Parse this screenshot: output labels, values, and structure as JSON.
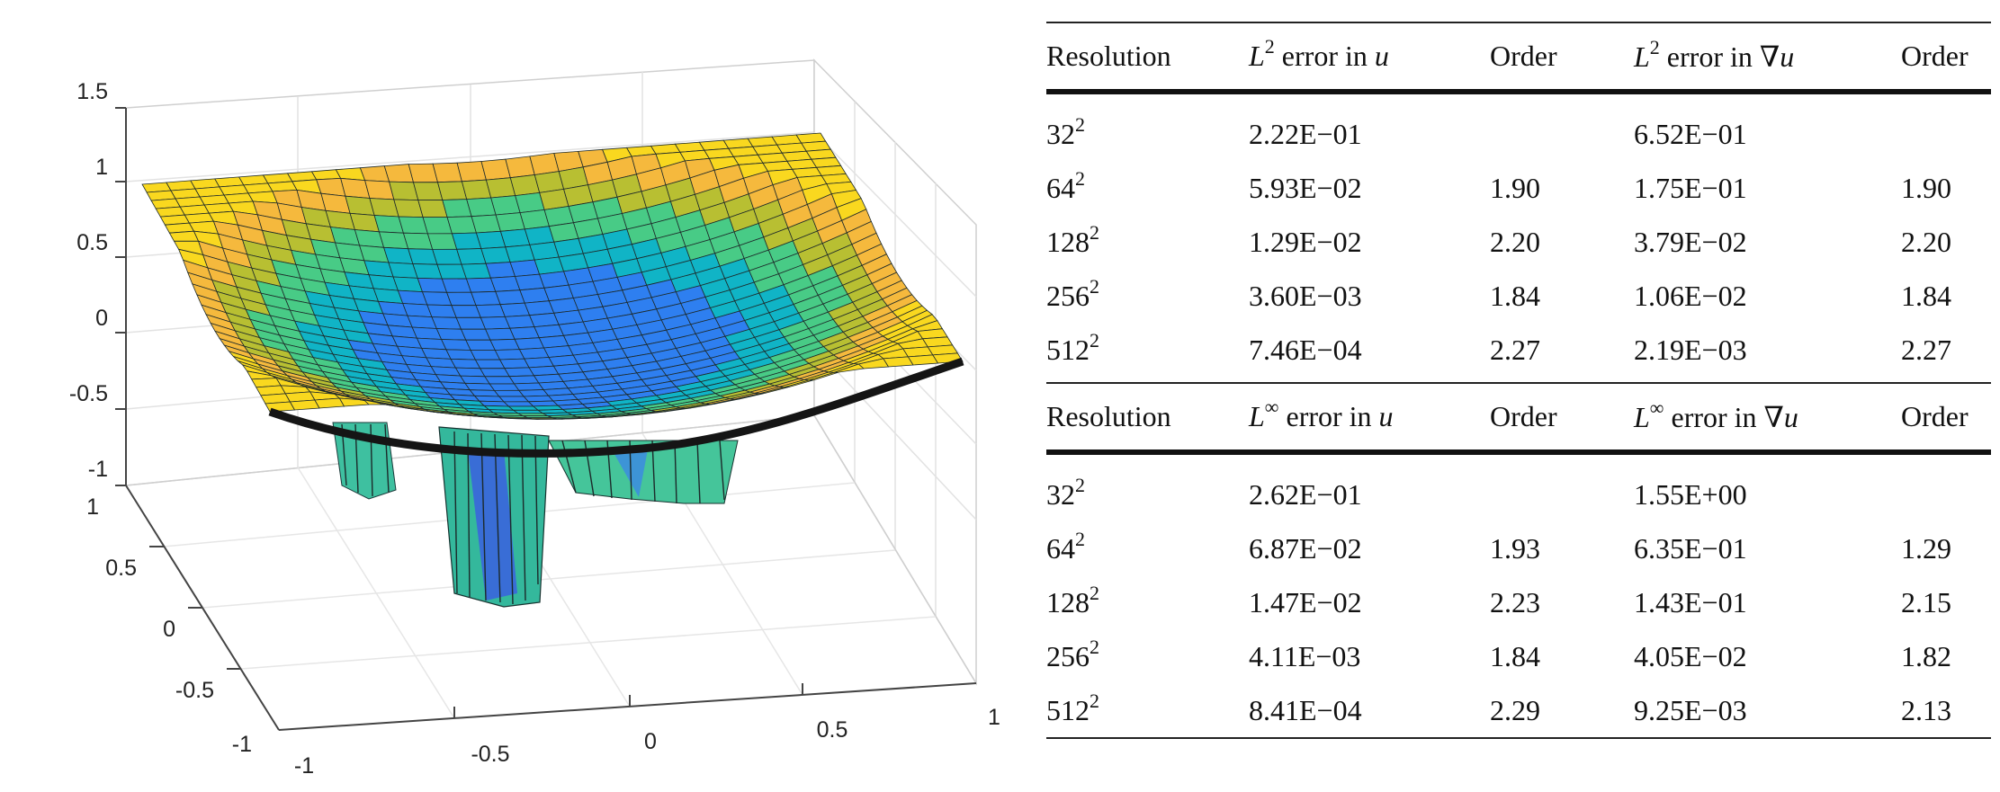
{
  "plot": {
    "z_ticks": [
      "1.5",
      "1",
      "0.5",
      "0",
      "-0.5",
      "-1"
    ],
    "y_ticks": [
      "1",
      "0.5",
      "0",
      "-0.5",
      "-1"
    ],
    "x_ticks": [
      "-1",
      "-0.5",
      "0",
      "0.5",
      "1"
    ],
    "colormap": [
      "#3e26a8",
      "#2e7ff0",
      "#10b4c6",
      "#48cb86",
      "#b8bf32",
      "#f5b93d",
      "#f9d81f"
    ]
  },
  "table_l2": {
    "headers": {
      "resolution": "Resolution",
      "err_u_prefix": "L",
      "err_u_sup": "2",
      "err_u_text": " error in ",
      "err_u_var": "u",
      "order1": "Order",
      "err_grad_prefix": "L",
      "err_grad_sup": "2",
      "err_grad_text": " error in ∇",
      "err_grad_var": "u",
      "order2": "Order"
    },
    "rows": [
      {
        "res_base": "32",
        "res_exp": "2",
        "err_u": "2.22E−01",
        "order_u": "",
        "err_grad": "6.52E−01",
        "order_grad": ""
      },
      {
        "res_base": "64",
        "res_exp": "2",
        "err_u": "5.93E−02",
        "order_u": "1.90",
        "err_grad": "1.75E−01",
        "order_grad": "1.90"
      },
      {
        "res_base": "128",
        "res_exp": "2",
        "err_u": "1.29E−02",
        "order_u": "2.20",
        "err_grad": "3.79E−02",
        "order_grad": "2.20"
      },
      {
        "res_base": "256",
        "res_exp": "2",
        "err_u": "3.60E−03",
        "order_u": "1.84",
        "err_grad": "1.06E−02",
        "order_grad": "1.84"
      },
      {
        "res_base": "512",
        "res_exp": "2",
        "err_u": "7.46E−04",
        "order_u": "2.27",
        "err_grad": "2.19E−03",
        "order_grad": "2.27"
      }
    ]
  },
  "table_linf": {
    "headers": {
      "resolution": "Resolution",
      "err_u_prefix": "L",
      "err_u_sup": "∞",
      "err_u_text": " error in ",
      "err_u_var": "u",
      "order1": "Order",
      "err_grad_prefix": "L",
      "err_grad_sup": "∞",
      "err_grad_text": " error in ∇",
      "err_grad_var": "u",
      "order2": "Order"
    },
    "rows": [
      {
        "res_base": "32",
        "res_exp": "2",
        "err_u": "2.62E−01",
        "order_u": "",
        "err_grad": "1.55E+00",
        "order_grad": ""
      },
      {
        "res_base": "64",
        "res_exp": "2",
        "err_u": "6.87E−02",
        "order_u": "1.93",
        "err_grad": "6.35E−01",
        "order_grad": "1.29"
      },
      {
        "res_base": "128",
        "res_exp": "2",
        "err_u": "1.47E−02",
        "order_u": "2.23",
        "err_grad": "1.43E−01",
        "order_grad": "2.15"
      },
      {
        "res_base": "256",
        "res_exp": "2",
        "err_u": "4.11E−03",
        "order_u": "1.84",
        "err_grad": "4.05E−02",
        "order_grad": "1.82"
      },
      {
        "res_base": "512",
        "res_exp": "2",
        "err_u": "8.41E−04",
        "order_u": "2.29",
        "err_grad": "9.25E−03",
        "order_grad": "2.13"
      }
    ]
  }
}
